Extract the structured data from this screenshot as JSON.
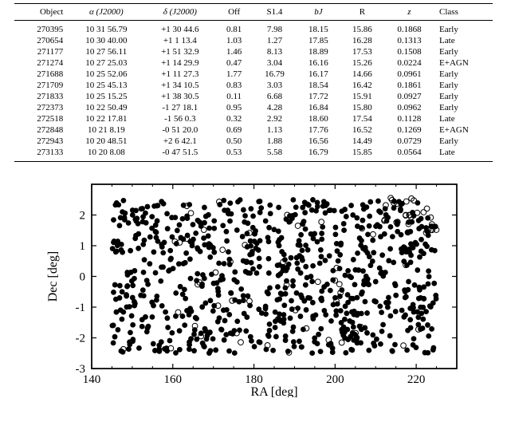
{
  "table": {
    "columns": [
      {
        "key": "object",
        "label": "Object",
        "class": "right",
        "italic": false
      },
      {
        "key": "ra",
        "label": "α (J2000)",
        "class": "center",
        "italic": true
      },
      {
        "key": "dec",
        "label": "δ (J2000)",
        "class": "center",
        "italic": true
      },
      {
        "key": "off",
        "label": "Off",
        "class": "center",
        "italic": false
      },
      {
        "key": "s14",
        "label": "S1.4",
        "class": "center",
        "italic": false
      },
      {
        "key": "bj",
        "label": "bJ",
        "class": "center",
        "italic": true,
        "sub": "J"
      },
      {
        "key": "R",
        "label": "R",
        "class": "center",
        "italic": false
      },
      {
        "key": "z",
        "label": "z",
        "class": "center",
        "italic": true
      },
      {
        "key": "class",
        "label": "Class",
        "class": "",
        "italic": false
      }
    ],
    "rows": [
      {
        "object": "270395",
        "ra": "10 31 56.79",
        "dec": "+1 30 44.6",
        "off": "0.81",
        "s14": "7.98",
        "bj": "18.15",
        "R": "15.86",
        "z": "0.1868",
        "class": "Early"
      },
      {
        "object": "270654",
        "ra": "10 30 40.00",
        "dec": "+1 1 13.4",
        "off": "1.03",
        "s14": "1.27",
        "bj": "17.85",
        "R": "16.28",
        "z": "0.1313",
        "class": "Late"
      },
      {
        "object": "271177",
        "ra": "10 27 56.11",
        "dec": "+1 51 32.9",
        "off": "1.46",
        "s14": "8.13",
        "bj": "18.89",
        "R": "17.53",
        "z": "0.1508",
        "class": "Early"
      },
      {
        "object": "271274",
        "ra": "10 27 25.03",
        "dec": "+1 14 29.9",
        "off": "0.47",
        "s14": "3.04",
        "bj": "16.16",
        "R": "15.26",
        "z": "0.0224",
        "class": "E+AGN"
      },
      {
        "object": "271688",
        "ra": "10 25 52.06",
        "dec": "+1 11 27.3",
        "off": "1.77",
        "s14": "16.79",
        "bj": "16.17",
        "R": "14.66",
        "z": "0.0961",
        "class": "Early"
      },
      {
        "object": "271709",
        "ra": "10 25 45.13",
        "dec": "+1 34 10.5",
        "off": "0.83",
        "s14": "3.03",
        "bj": "18.54",
        "R": "16.42",
        "z": "0.1861",
        "class": "Early"
      },
      {
        "object": "271833",
        "ra": "10 25 15.25",
        "dec": "+1 38 30.5",
        "off": "0.11",
        "s14": "6.68",
        "bj": "17.72",
        "R": "15.91",
        "z": "0.0927",
        "class": "Early"
      },
      {
        "object": "272373",
        "ra": "10 22 50.49",
        "dec": "-1 27 18.1",
        "off": "0.95",
        "s14": "4.28",
        "bj": "16.84",
        "R": "15.80",
        "z": "0.0962",
        "class": "Early"
      },
      {
        "object": "272518",
        "ra": "10 22 17.81",
        "dec": "-1 56 0.3",
        "off": "0.32",
        "s14": "2.92",
        "bj": "18.60",
        "R": "17.54",
        "z": "0.1128",
        "class": "Late"
      },
      {
        "object": "272848",
        "ra": "10 21 8.19",
        "dec": "-0 51 20.0",
        "off": "0.69",
        "s14": "1.13",
        "bj": "17.76",
        "R": "16.52",
        "z": "0.1269",
        "class": "E+AGN"
      },
      {
        "object": "272943",
        "ra": "10 20 48.51",
        "dec": "+2 6 42.1",
        "off": "0.50",
        "s14": "1.88",
        "bj": "16.56",
        "R": "14.49",
        "z": "0.0729",
        "class": "Early"
      },
      {
        "object": "273133",
        "ra": "10 20 8.08",
        "dec": "-0 47 51.5",
        "off": "0.53",
        "s14": "5.58",
        "bj": "16.79",
        "R": "15.85",
        "z": "0.0564",
        "class": "Late"
      }
    ]
  },
  "scatter": {
    "type": "scatter",
    "xlabel": "RA [deg]",
    "ylabel": "Dec  [deg]",
    "xlim": [
      140,
      230
    ],
    "ylim": [
      -3,
      3
    ],
    "xticks": [
      140,
      160,
      180,
      200,
      220
    ],
    "yticks": [
      -3,
      -2,
      -1,
      0,
      1,
      2
    ],
    "marker_radius_filled": 3.4,
    "marker_radius_open": 3.4,
    "stroke_width": 1.0,
    "fill_color": "#000000",
    "open_stroke": "#000000",
    "background_color": "#ffffff",
    "n_filled": 800,
    "n_open": 80,
    "label_fontsize": 16,
    "tick_fontsize": 15,
    "seed": 12345,
    "open_cluster": {
      "ra_center": 218,
      "dec_center": 2.0,
      "spread_ra": 6,
      "spread_dec": 0.6,
      "n": 25
    },
    "filled_data_range": {
      "ra_min": 145,
      "ra_max": 225,
      "dec_min": -2.5,
      "dec_max": 2.5
    }
  }
}
